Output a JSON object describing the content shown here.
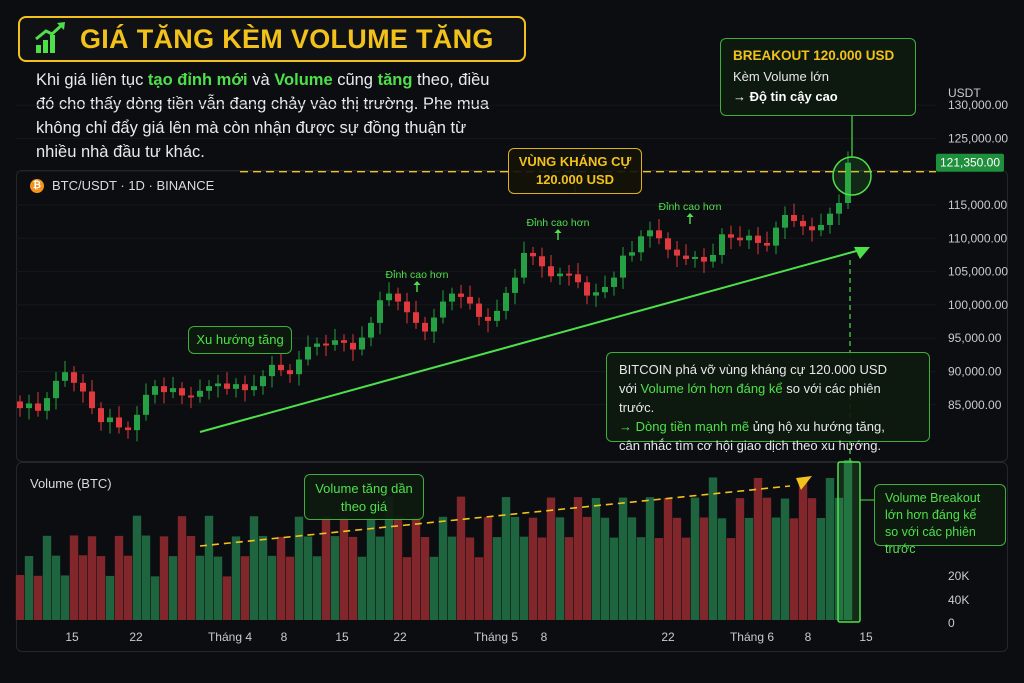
{
  "header": {
    "title": "GIÁ TĂNG KÈM VOLUME TĂNG",
    "intro": [
      {
        "text": "Khi giá liên tục ",
        "hl": false
      },
      {
        "text": "tạo đỉnh mới",
        "hl": true
      },
      {
        "text": " và ",
        "hl": false
      },
      {
        "text": "Volume",
        "hl": true
      },
      {
        "text": " cũng ",
        "hl": false
      },
      {
        "text": "tăng",
        "hl": true
      },
      {
        "text": " theo, điều đó cho thấy dòng tiền vẫn đang chảy vào thị trường. Phe mua không chỉ đẩy giá lên mà còn nhận được sự đồng thuận từ nhiều nhà đầu tư khác.",
        "hl": false
      }
    ]
  },
  "symbol": {
    "label": "BTC/USDT · 1D · BINANCE",
    "icon": "bitcoin-icon"
  },
  "volume_panel": {
    "title": "Volume (BTC)"
  },
  "annotations": {
    "resistance": {
      "line1": "VÙNG KHÁNG CỰ",
      "line2": "120.000 USD"
    },
    "breakout": {
      "title": "BREAKOUT 120.000 USD",
      "line2": "Kèm Volume lớn",
      "line3": "→ Độ tin cậy cao"
    },
    "trend": "Xu hướng tăng",
    "peaks": [
      "Đỉnh cao hơn",
      "Đỉnh cao hơn",
      "Đỉnh cao hơn"
    ],
    "explain": {
      "l1": "BITCOIN phá vỡ vùng kháng cự 120.000 USD",
      "l2a": "với ",
      "l2b": "Volume lớn hơn đáng kể",
      "l2c": " so với các phiên trước.",
      "l3a": "→ ",
      "l3b": "Dòng tiền mạnh mẽ",
      "l3c": " ủng hộ xu hướng tăng,",
      "l4": "cân nhắc tìm cơ hội giao dịch theo xu hướng."
    },
    "volume_trend": {
      "line1": "Volume tăng dần",
      "line2": "theo giá"
    },
    "volume_breakout": {
      "line1": "Volume Breakout",
      "line2": "lớn hơn đáng kể",
      "line3": "so với các phiên trước"
    }
  },
  "colors": {
    "up": "#26a044",
    "down": "#e0393e",
    "accent": "#4ee04a",
    "resistance": "#f2c21a"
  },
  "chart_data": [
    {
      "type": "candlestick",
      "symbol": "BTC/USDT",
      "timeframe": "1D",
      "exchange": "BINANCE",
      "y_axis": {
        "unit": "USDT",
        "ticks": [
          85000,
          90000,
          95000,
          100000,
          105000,
          110000,
          115000,
          120000,
          125000,
          130000
        ],
        "range": [
          80000,
          134000
        ]
      },
      "x_axis": {
        "tick_labels": [
          "15",
          "22",
          "Tháng 4",
          "8",
          "15",
          "22",
          "Tháng 5",
          "8",
          "22",
          "Tháng 6",
          "8",
          "15"
        ]
      },
      "last_price": 121350,
      "last_price_label": "121,350.00",
      "resistance_level": 120000,
      "closes": [
        84500,
        85200,
        84100,
        86000,
        88600,
        89900,
        88300,
        87000,
        84500,
        82400,
        83100,
        81600,
        81200,
        83500,
        86500,
        87800,
        86900,
        87500,
        86400,
        86200,
        87100,
        87800,
        88200,
        87400,
        88100,
        87200,
        87800,
        89300,
        91000,
        90200,
        89600,
        91800,
        93700,
        94200,
        94000,
        94700,
        94300,
        93300,
        95100,
        97300,
        100700,
        101700,
        100500,
        98900,
        97300,
        96000,
        98100,
        100500,
        101700,
        101200,
        100200,
        98200,
        97600,
        99100,
        101800,
        104100,
        107800,
        107300,
        105800,
        104300,
        104700,
        104600,
        103400,
        101400,
        101900,
        102700,
        104100,
        107400,
        107900,
        110300,
        111200,
        110000,
        108300,
        107400,
        106900,
        107200,
        106500,
        107500,
        110600,
        110100,
        109700,
        110400,
        109300,
        108900,
        111600,
        113500,
        112600,
        111800,
        111200,
        112000,
        113700,
        115300,
        121350
      ],
      "volume_axis": {
        "ticks": [
          "20K",
          "40K",
          "0"
        ]
      },
      "volume_trend": "rising",
      "breakout_volume": "highest"
    }
  ]
}
